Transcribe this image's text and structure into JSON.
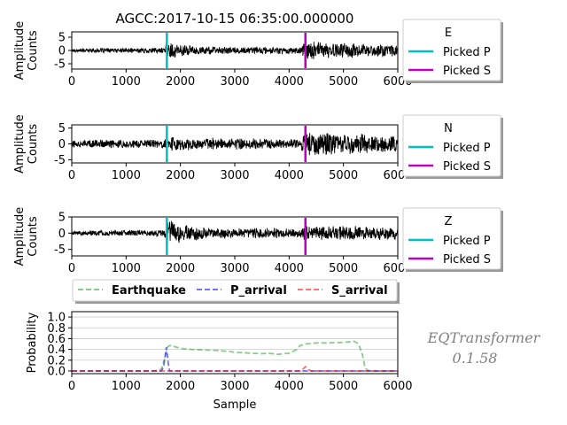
{
  "title": "AGCC:2017-10-15 06:35:00.000000",
  "watermark": {
    "line1": "EQTransformer",
    "line2": "0.1.58",
    "color": "#808080"
  },
  "colors": {
    "trace": "#000000",
    "picked_p": "#00bfbf",
    "picked_s": "#bf00bf",
    "earthquake": "#2ca02c",
    "p_arrival": "#0000ff",
    "s_arrival": "#ff0000"
  },
  "chart_data": [
    {
      "type": "line",
      "panel": "waveform",
      "component": "E",
      "xlabel": "",
      "ylabel": [
        "Amplitude",
        "Counts"
      ],
      "xlim": [
        0,
        6000
      ],
      "ylim": [
        -7,
        7
      ],
      "xticks": [
        "0",
        "1000",
        "2000",
        "3000",
        "4000",
        "5000",
        "6000"
      ],
      "yticks": [
        "5",
        "0",
        "-5"
      ],
      "envelope": [
        {
          "x": 0,
          "a": 0.8
        },
        {
          "x": 1000,
          "a": 1.0
        },
        {
          "x": 1700,
          "a": 1.2
        },
        {
          "x": 1760,
          "a": 3.5
        },
        {
          "x": 2300,
          "a": 1.8
        },
        {
          "x": 3000,
          "a": 1.4
        },
        {
          "x": 4200,
          "a": 1.5
        },
        {
          "x": 4300,
          "a": 4.5
        },
        {
          "x": 4600,
          "a": 3.2
        },
        {
          "x": 6000,
          "a": 2.4
        }
      ],
      "picks": {
        "p": 1750,
        "s": 4300
      },
      "legend": {
        "title": "E",
        "entries": [
          "Picked P",
          "Picked S"
        ]
      }
    },
    {
      "type": "line",
      "panel": "waveform",
      "component": "N",
      "xlabel": "",
      "ylabel": [
        "Amplitude",
        "Counts"
      ],
      "xlim": [
        0,
        6000
      ],
      "ylim": [
        -6,
        6
      ],
      "xticks": [
        "0",
        "1000",
        "2000",
        "3000",
        "4000",
        "5000",
        "6000"
      ],
      "yticks": [
        "5",
        "0",
        "-5"
      ],
      "envelope": [
        {
          "x": 0,
          "a": 1.3
        },
        {
          "x": 1000,
          "a": 1.5
        },
        {
          "x": 1700,
          "a": 1.5
        },
        {
          "x": 1760,
          "a": 2.8
        },
        {
          "x": 2300,
          "a": 2.0
        },
        {
          "x": 3000,
          "a": 2.0
        },
        {
          "x": 4200,
          "a": 1.8
        },
        {
          "x": 4300,
          "a": 4.2
        },
        {
          "x": 4600,
          "a": 4.0
        },
        {
          "x": 6000,
          "a": 2.6
        }
      ],
      "picks": {
        "p": 1750,
        "s": 4300
      },
      "legend": {
        "title": "N",
        "entries": [
          "Picked P",
          "Picked S"
        ]
      }
    },
    {
      "type": "line",
      "panel": "waveform",
      "component": "Z",
      "xlabel": "",
      "ylabel": [
        "Amplitude",
        "Counts"
      ],
      "xlim": [
        0,
        6000
      ],
      "ylim": [
        -7,
        5
      ],
      "xticks": [
        "0",
        "1000",
        "2000",
        "3000",
        "4000",
        "5000",
        "6000"
      ],
      "yticks": [
        "5",
        "0",
        "-5"
      ],
      "envelope": [
        {
          "x": 0,
          "a": 0.8
        },
        {
          "x": 1000,
          "a": 1.0
        },
        {
          "x": 1700,
          "a": 1.1
        },
        {
          "x": 1760,
          "a": 4.8
        },
        {
          "x": 2000,
          "a": 3.2
        },
        {
          "x": 2500,
          "a": 1.8
        },
        {
          "x": 3500,
          "a": 1.8
        },
        {
          "x": 4200,
          "a": 1.4
        },
        {
          "x": 4300,
          "a": 2.5
        },
        {
          "x": 6000,
          "a": 2.2
        }
      ],
      "picks": {
        "p": 1750,
        "s": 4300
      },
      "legend": {
        "title": "Z",
        "entries": [
          "Picked P",
          "Picked S"
        ]
      }
    },
    {
      "type": "line",
      "panel": "probability",
      "xlabel": "Sample",
      "ylabel": "Probability",
      "xlim": [
        0,
        6000
      ],
      "ylim": [
        -0.05,
        1.1
      ],
      "xticks": [
        "0",
        "1000",
        "2000",
        "3000",
        "4000",
        "5000",
        "6000"
      ],
      "yticks": [
        "0.0",
        "0.2",
        "0.4",
        "0.6",
        "0.8",
        "1.0"
      ],
      "grid": "horizontal",
      "legend": {
        "placement": "top",
        "entries": [
          "Earthquake",
          "P_arrival",
          "S_arrival"
        ]
      },
      "series": [
        {
          "name": "Earthquake",
          "style": "dashed",
          "x": [
            0,
            1500,
            1650,
            1700,
            1760,
            1800,
            1850,
            1900,
            2000,
            2100,
            2200,
            2400,
            2700,
            3000,
            3300,
            3500,
            3600,
            3800,
            4000,
            4150,
            4200,
            4300,
            4500,
            4700,
            5000,
            5100,
            5200,
            5280,
            5350,
            5400,
            5450,
            5500,
            6000
          ],
          "y": [
            0.0,
            0.0,
            0.03,
            0.2,
            0.44,
            0.47,
            0.47,
            0.45,
            0.42,
            0.41,
            0.4,
            0.39,
            0.38,
            0.35,
            0.33,
            0.32,
            0.33,
            0.31,
            0.33,
            0.4,
            0.47,
            0.5,
            0.52,
            0.52,
            0.53,
            0.54,
            0.55,
            0.5,
            0.3,
            0.05,
            0.01,
            0.0,
            0.0
          ]
        },
        {
          "name": "P_arrival",
          "style": "dashed",
          "x": [
            0,
            1650,
            1690,
            1720,
            1740,
            1760,
            1780,
            1800,
            6000
          ],
          "y": [
            0.0,
            0.0,
            0.08,
            0.28,
            0.44,
            0.3,
            0.1,
            0.0,
            0.0
          ]
        },
        {
          "name": "S_arrival",
          "style": "dashed",
          "x": [
            0,
            4200,
            4260,
            4300,
            4340,
            4400,
            6000
          ],
          "y": [
            0.0,
            0.0,
            0.04,
            0.08,
            0.04,
            0.0,
            0.0
          ]
        }
      ]
    }
  ]
}
